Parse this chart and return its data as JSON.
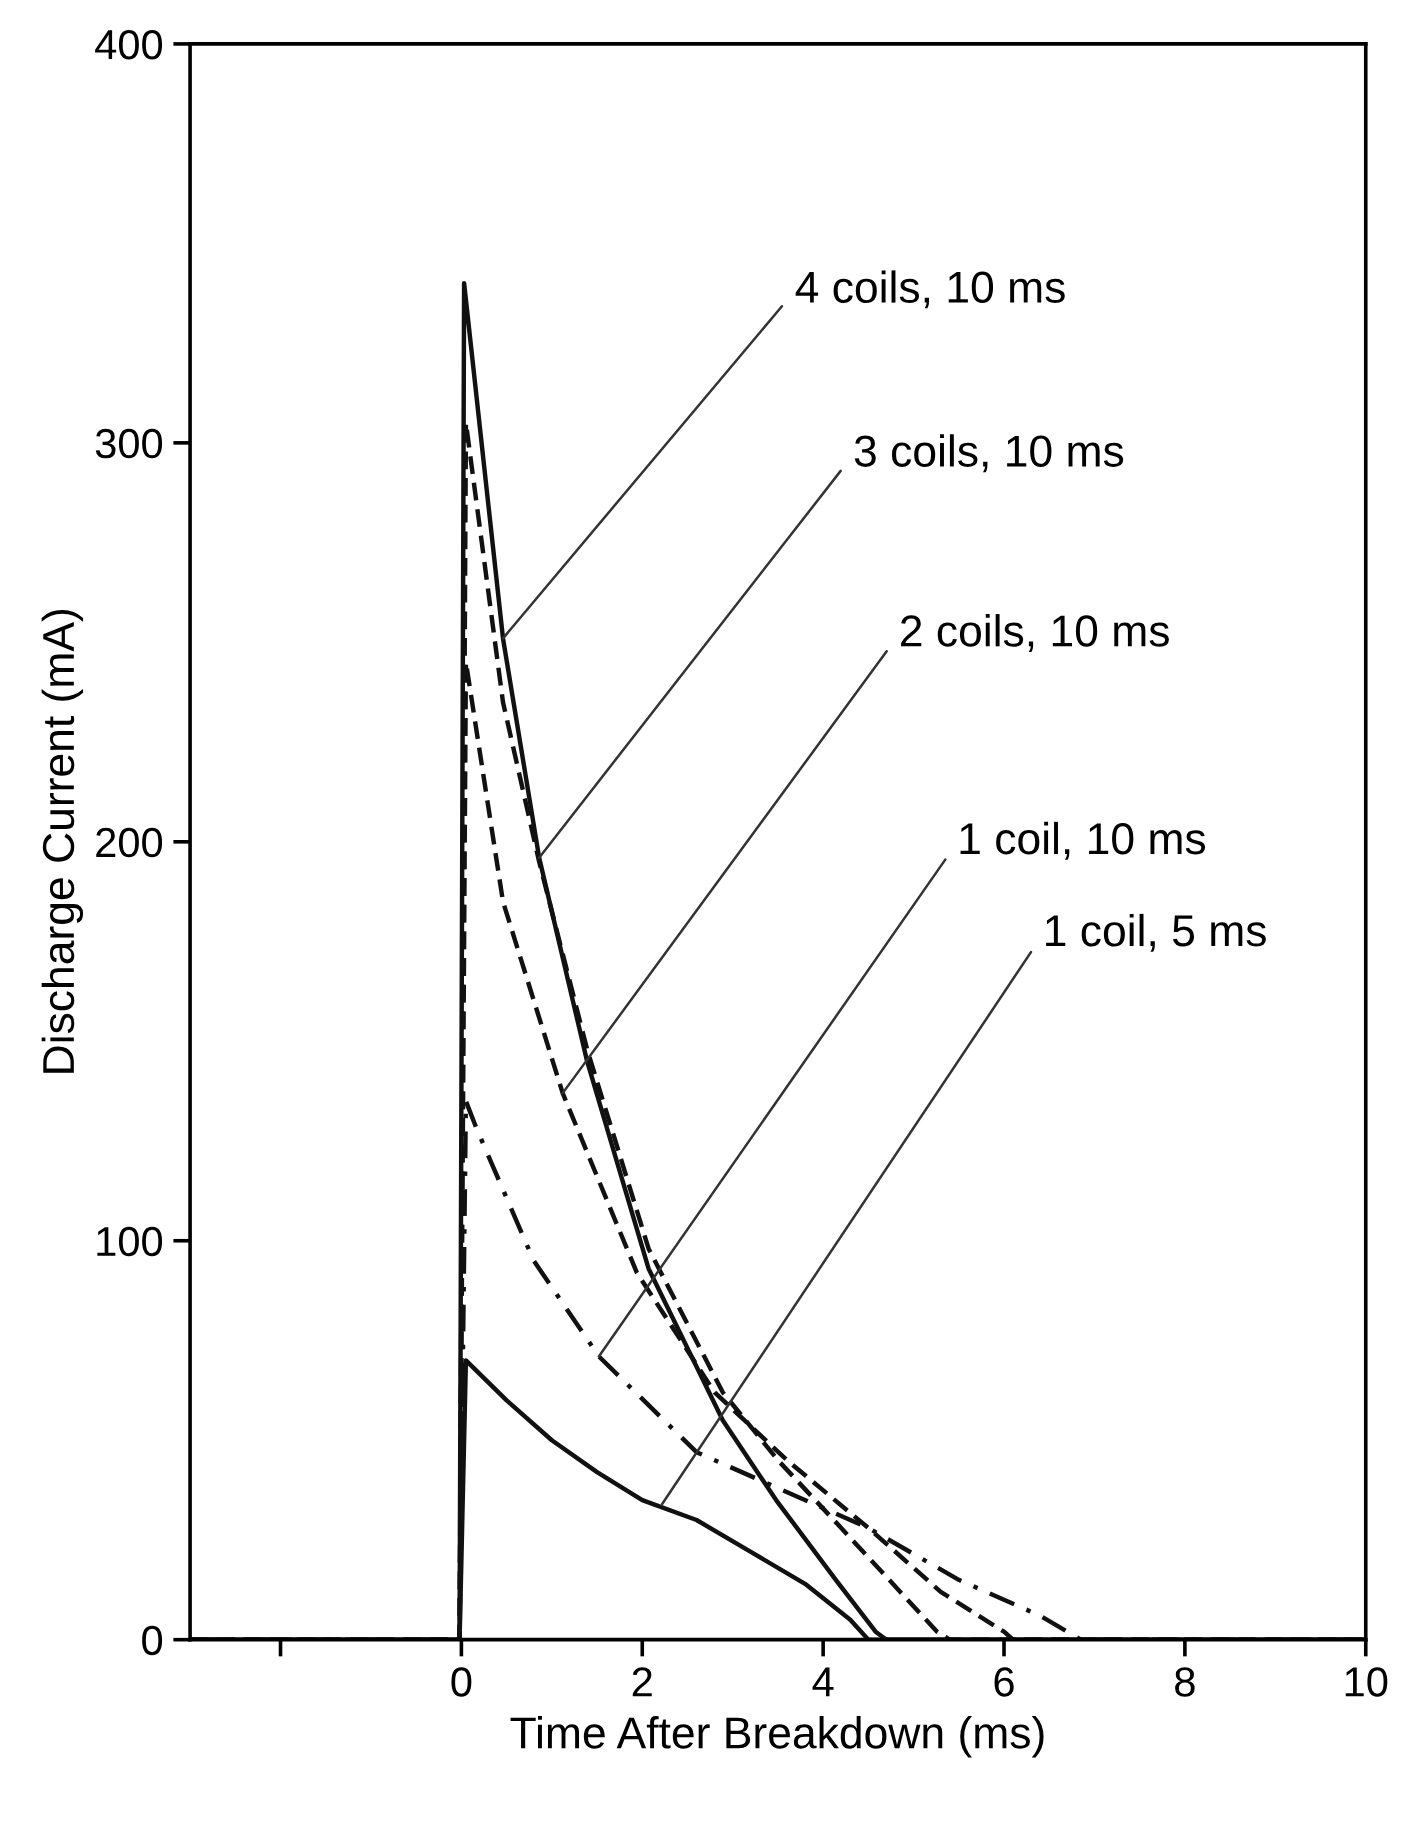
{
  "chart_data": {
    "type": "line",
    "xlabel": "Time After Breakdown (ms)",
    "ylabel": "Discharge Current (mA)",
    "xlim": [
      -3,
      10
    ],
    "xticks": [
      {
        "value": -2,
        "label": null
      },
      0,
      2,
      4,
      6,
      8,
      10
    ],
    "ylim": [
      0,
      400
    ],
    "yticks": [
      0,
      100,
      200,
      300,
      400
    ],
    "grid": false,
    "legend": false,
    "series": [
      {
        "color": "#111111",
        "line_style": "solid",
        "x": [
          -3,
          -0.02,
          0.03,
          0.46,
          0.86,
          1.39,
          2.07,
          2.89,
          3.48,
          4.14,
          4.58,
          4.7,
          10
        ],
        "values": [
          0,
          0,
          340,
          251,
          196,
          145,
          93,
          55,
          35,
          15,
          2,
          0,
          0
        ]
      },
      {
        "color": "#111111",
        "line_style": "dashed",
        "x": [
          -3,
          -0.02,
          0.05,
          0.46,
          0.86,
          1.39,
          2.07,
          2.89,
          3.5,
          4.2,
          5.26,
          5.4,
          10
        ],
        "values": [
          0,
          0,
          305,
          235,
          195,
          148,
          98,
          62,
          45,
          28,
          2,
          0,
          0
        ]
      },
      {
        "color": "#111111",
        "line_style": "dashed",
        "x": [
          -3,
          -0.02,
          0.05,
          0.46,
          1.12,
          1.94,
          2.8,
          3.6,
          4.5,
          5.3,
          6.0,
          6.1,
          10
        ],
        "values": [
          0,
          0,
          245,
          185,
          137,
          92,
          62,
          45,
          28,
          12,
          2,
          0,
          0
        ]
      },
      {
        "color": "#111111",
        "line_style": "dotted",
        "x": [
          -3,
          -0.02,
          0.05,
          0.17,
          0.8,
          1.52,
          2.6,
          3.5,
          4.5,
          5.5,
          6.4,
          6.85,
          10
        ],
        "values": [
          0,
          0,
          135,
          128,
          95,
          71,
          47,
          38,
          28,
          15,
          6,
          0,
          0
        ]
      },
      {
        "color": "#111111",
        "line_style": "solid",
        "x": [
          -3,
          -0.02,
          0.05,
          0.5,
          1,
          1.5,
          2,
          2.6,
          3.2,
          3.8,
          4.3,
          4.5,
          10
        ],
        "values": [
          0,
          0,
          70,
          60,
          50,
          42,
          35,
          30,
          22,
          14,
          5,
          0,
          0
        ]
      }
    ],
    "annotations": [
      {
        "text": "4 coils, 10 ms",
        "x": 0.46,
        "y": 251
      },
      {
        "text": "3 coils, 10 ms",
        "x": 0.86,
        "y": 196
      },
      {
        "text": "2 coils, 10 ms",
        "x": 1.12,
        "y": 137
      },
      {
        "text": "1 coil, 10 ms",
        "x": 1.52,
        "y": 71
      },
      {
        "text": "1 coil, 5 ms",
        "x": 2.22,
        "y": 34
      }
    ]
  }
}
